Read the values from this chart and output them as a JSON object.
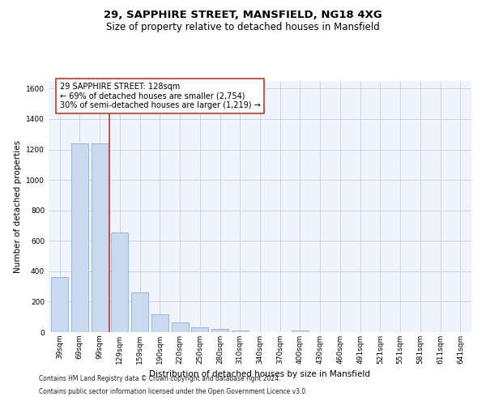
{
  "title1": "29, SAPPHIRE STREET, MANSFIELD, NG18 4XG",
  "title2": "Size of property relative to detached houses in Mansfield",
  "xlabel": "Distribution of detached houses by size in Mansfield",
  "ylabel": "Number of detached properties",
  "footnote1": "Contains HM Land Registry data © Crown copyright and database right 2024.",
  "footnote2": "Contains public sector information licensed under the Open Government Licence v3.0.",
  "annotation_line1": "29 SAPPHIRE STREET: 128sqm",
  "annotation_line2": "← 69% of detached houses are smaller (2,754)",
  "annotation_line3": "30% of semi-detached houses are larger (1,219) →",
  "categories": [
    "39sqm",
    "69sqm",
    "99sqm",
    "129sqm",
    "159sqm",
    "190sqm",
    "220sqm",
    "250sqm",
    "280sqm",
    "310sqm",
    "340sqm",
    "370sqm",
    "400sqm",
    "430sqm",
    "460sqm",
    "491sqm",
    "521sqm",
    "551sqm",
    "581sqm",
    "611sqm",
    "641sqm"
  ],
  "values": [
    360,
    1240,
    1240,
    655,
    260,
    115,
    65,
    30,
    22,
    13,
    0,
    0,
    13,
    0,
    0,
    0,
    0,
    0,
    0,
    0,
    0
  ],
  "bar_color": "#c9d9f0",
  "bar_edge_color": "#7da6d4",
  "highlight_bar_index": 3,
  "highlight_line_color": "#c0392b",
  "ylim": [
    0,
    1650
  ],
  "yticks": [
    0,
    200,
    400,
    600,
    800,
    1000,
    1200,
    1400,
    1600
  ],
  "grid_color": "#c8d0e0",
  "background_color": "#f0f4fb",
  "annotation_box_color": "#ffffff",
  "annotation_box_edge": "#c0392b",
  "title_fontsize": 9.5,
  "subtitle_fontsize": 8.5,
  "axis_label_fontsize": 7.5,
  "tick_fontsize": 6.5,
  "annotation_fontsize": 7,
  "footnote_fontsize": 5.5
}
